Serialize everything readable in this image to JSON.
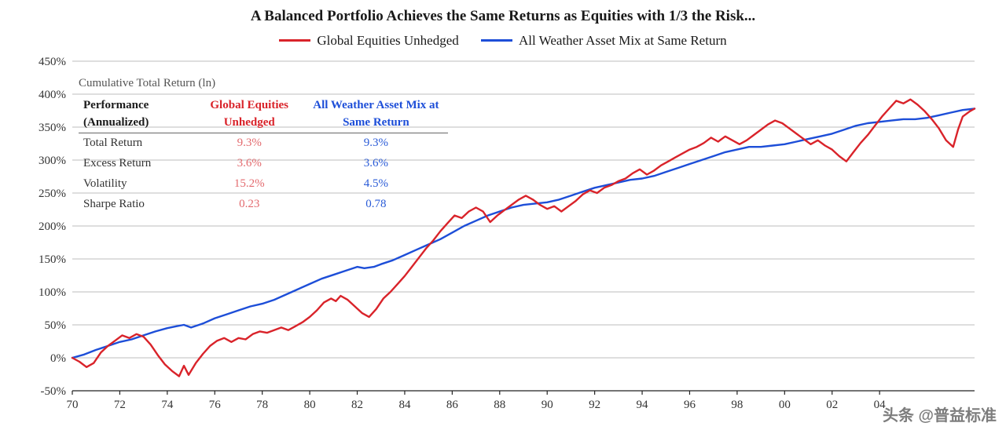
{
  "title": "A Balanced Portfolio Achieves the Same Returns as Equities with 1/3 the Risk...",
  "legend": {
    "equities": {
      "label": "Global Equities Unhedged",
      "color": "#d9232a"
    },
    "allweather": {
      "label": "All Weather Asset Mix at Same Return",
      "color": "#1d4ed8"
    }
  },
  "chart": {
    "type": "line",
    "background_color": "#ffffff",
    "grid_color": "#bcbcbc",
    "axis_color": "#222222",
    "x": {
      "min": 70,
      "max": 108,
      "ticks": [
        70,
        72,
        74,
        76,
        78,
        80,
        82,
        84,
        86,
        88,
        90,
        92,
        94,
        96,
        98,
        100,
        102,
        104
      ],
      "tick_labels": [
        "70",
        "72",
        "74",
        "76",
        "78",
        "80",
        "82",
        "84",
        "86",
        "88",
        "90",
        "92",
        "94",
        "96",
        "98",
        "00",
        "02",
        "04"
      ]
    },
    "y": {
      "min": -50,
      "max": 450,
      "ticks": [
        -50,
        0,
        50,
        100,
        150,
        200,
        250,
        300,
        350,
        400,
        450
      ],
      "tick_labels": [
        "-50%",
        "0%",
        "50%",
        "100%",
        "150%",
        "200%",
        "250%",
        "300%",
        "350%",
        "400%",
        "450%"
      ]
    },
    "series": {
      "allweather": {
        "color": "#1d4ed8",
        "width": 2.4,
        "points": [
          [
            70,
            0
          ],
          [
            70.5,
            5
          ],
          [
            71,
            12
          ],
          [
            71.5,
            18
          ],
          [
            72,
            24
          ],
          [
            72.5,
            28
          ],
          [
            73,
            34
          ],
          [
            73.5,
            40
          ],
          [
            74,
            45
          ],
          [
            74.4,
            48
          ],
          [
            74.7,
            50
          ],
          [
            75,
            46
          ],
          [
            75.5,
            52
          ],
          [
            76,
            60
          ],
          [
            76.5,
            66
          ],
          [
            77,
            72
          ],
          [
            77.5,
            78
          ],
          [
            78,
            82
          ],
          [
            78.5,
            88
          ],
          [
            79,
            96
          ],
          [
            79.5,
            104
          ],
          [
            80,
            112
          ],
          [
            80.5,
            120
          ],
          [
            81,
            126
          ],
          [
            81.5,
            132
          ],
          [
            82,
            138
          ],
          [
            82.3,
            136
          ],
          [
            82.7,
            138
          ],
          [
            83,
            142
          ],
          [
            83.5,
            148
          ],
          [
            84,
            156
          ],
          [
            84.5,
            164
          ],
          [
            85,
            172
          ],
          [
            85.5,
            180
          ],
          [
            86,
            190
          ],
          [
            86.5,
            200
          ],
          [
            87,
            208
          ],
          [
            87.5,
            216
          ],
          [
            88,
            222
          ],
          [
            88.5,
            228
          ],
          [
            89,
            232
          ],
          [
            89.5,
            234
          ],
          [
            90,
            236
          ],
          [
            90.5,
            240
          ],
          [
            91,
            246
          ],
          [
            91.5,
            252
          ],
          [
            92,
            258
          ],
          [
            92.5,
            262
          ],
          [
            93,
            266
          ],
          [
            93.5,
            270
          ],
          [
            94,
            272
          ],
          [
            94.5,
            276
          ],
          [
            95,
            282
          ],
          [
            95.5,
            288
          ],
          [
            96,
            294
          ],
          [
            96.5,
            300
          ],
          [
            97,
            306
          ],
          [
            97.5,
            312
          ],
          [
            98,
            316
          ],
          [
            98.5,
            320
          ],
          [
            99,
            320
          ],
          [
            99.5,
            322
          ],
          [
            100,
            324
          ],
          [
            100.5,
            328
          ],
          [
            101,
            332
          ],
          [
            101.5,
            336
          ],
          [
            102,
            340
          ],
          [
            102.5,
            346
          ],
          [
            103,
            352
          ],
          [
            103.5,
            356
          ],
          [
            104,
            358
          ],
          [
            104.5,
            360
          ],
          [
            105,
            362
          ],
          [
            105.5,
            362
          ],
          [
            106,
            364
          ],
          [
            106.5,
            368
          ],
          [
            107,
            372
          ],
          [
            107.5,
            376
          ],
          [
            108,
            378
          ]
        ]
      },
      "equities": {
        "color": "#d9232a",
        "width": 2.2,
        "points": [
          [
            70,
            0
          ],
          [
            70.3,
            -6
          ],
          [
            70.6,
            -14
          ],
          [
            70.9,
            -8
          ],
          [
            71.2,
            8
          ],
          [
            71.5,
            18
          ],
          [
            71.8,
            26
          ],
          [
            72.1,
            34
          ],
          [
            72.4,
            30
          ],
          [
            72.7,
            36
          ],
          [
            73,
            32
          ],
          [
            73.3,
            20
          ],
          [
            73.6,
            4
          ],
          [
            73.9,
            -10
          ],
          [
            74.2,
            -20
          ],
          [
            74.5,
            -28
          ],
          [
            74.7,
            -12
          ],
          [
            74.9,
            -26
          ],
          [
            75.2,
            -8
          ],
          [
            75.5,
            6
          ],
          [
            75.8,
            18
          ],
          [
            76.1,
            26
          ],
          [
            76.4,
            30
          ],
          [
            76.7,
            24
          ],
          [
            77,
            30
          ],
          [
            77.3,
            28
          ],
          [
            77.6,
            36
          ],
          [
            77.9,
            40
          ],
          [
            78.2,
            38
          ],
          [
            78.5,
            42
          ],
          [
            78.8,
            46
          ],
          [
            79.1,
            42
          ],
          [
            79.4,
            48
          ],
          [
            79.7,
            54
          ],
          [
            80,
            62
          ],
          [
            80.3,
            72
          ],
          [
            80.6,
            84
          ],
          [
            80.9,
            90
          ],
          [
            81.1,
            86
          ],
          [
            81.3,
            94
          ],
          [
            81.6,
            88
          ],
          [
            81.9,
            78
          ],
          [
            82.2,
            68
          ],
          [
            82.5,
            62
          ],
          [
            82.8,
            74
          ],
          [
            83.1,
            90
          ],
          [
            83.4,
            100
          ],
          [
            83.7,
            112
          ],
          [
            84,
            124
          ],
          [
            84.3,
            138
          ],
          [
            84.6,
            152
          ],
          [
            84.9,
            166
          ],
          [
            85.2,
            178
          ],
          [
            85.5,
            192
          ],
          [
            85.8,
            204
          ],
          [
            86.1,
            216
          ],
          [
            86.4,
            212
          ],
          [
            86.7,
            222
          ],
          [
            87,
            228
          ],
          [
            87.3,
            222
          ],
          [
            87.6,
            206
          ],
          [
            87.9,
            216
          ],
          [
            88.2,
            224
          ],
          [
            88.5,
            232
          ],
          [
            88.8,
            240
          ],
          [
            89.1,
            246
          ],
          [
            89.4,
            240
          ],
          [
            89.7,
            232
          ],
          [
            90,
            226
          ],
          [
            90.3,
            230
          ],
          [
            90.6,
            222
          ],
          [
            90.9,
            230
          ],
          [
            91.2,
            238
          ],
          [
            91.5,
            248
          ],
          [
            91.8,
            254
          ],
          [
            92.1,
            250
          ],
          [
            92.4,
            258
          ],
          [
            92.7,
            262
          ],
          [
            93,
            268
          ],
          [
            93.3,
            272
          ],
          [
            93.6,
            280
          ],
          [
            93.9,
            286
          ],
          [
            94.2,
            278
          ],
          [
            94.5,
            284
          ],
          [
            94.8,
            292
          ],
          [
            95.1,
            298
          ],
          [
            95.4,
            304
          ],
          [
            95.7,
            310
          ],
          [
            96,
            316
          ],
          [
            96.3,
            320
          ],
          [
            96.6,
            326
          ],
          [
            96.9,
            334
          ],
          [
            97.2,
            328
          ],
          [
            97.5,
            336
          ],
          [
            97.8,
            330
          ],
          [
            98.1,
            324
          ],
          [
            98.4,
            330
          ],
          [
            98.7,
            338
          ],
          [
            99,
            346
          ],
          [
            99.3,
            354
          ],
          [
            99.6,
            360
          ],
          [
            99.9,
            356
          ],
          [
            100.2,
            348
          ],
          [
            100.5,
            340
          ],
          [
            100.8,
            332
          ],
          [
            101.1,
            324
          ],
          [
            101.4,
            330
          ],
          [
            101.7,
            322
          ],
          [
            102,
            316
          ],
          [
            102.3,
            306
          ],
          [
            102.6,
            298
          ],
          [
            102.9,
            312
          ],
          [
            103.2,
            326
          ],
          [
            103.5,
            338
          ],
          [
            103.8,
            352
          ],
          [
            104.1,
            366
          ],
          [
            104.4,
            378
          ],
          [
            104.7,
            390
          ],
          [
            105,
            386
          ],
          [
            105.3,
            392
          ],
          [
            105.6,
            384
          ],
          [
            105.9,
            374
          ],
          [
            106.2,
            362
          ],
          [
            106.5,
            348
          ],
          [
            106.8,
            330
          ],
          [
            107.1,
            320
          ],
          [
            107.3,
            346
          ],
          [
            107.5,
            366
          ],
          [
            107.8,
            374
          ],
          [
            108,
            378
          ]
        ]
      }
    }
  },
  "inset": {
    "title": "Cumulative Total Return (ln)",
    "columns": {
      "metric": "Performance (Annualized)",
      "equities": "Global Equities Unhedged",
      "allweather": "All Weather Asset Mix at Same Return"
    },
    "rows": [
      {
        "metric": "Total Return",
        "equities": "9.3%",
        "allweather": "9.3%"
      },
      {
        "metric": "Excess Return",
        "equities": "3.6%",
        "allweather": "3.6%"
      },
      {
        "metric": "Volatility",
        "equities": "15.2%",
        "allweather": "4.5%"
      },
      {
        "metric": "Sharpe Ratio",
        "equities": "0.23",
        "allweather": "0.78"
      }
    ]
  },
  "watermark": "头条 @普益标准",
  "label_fontsize": 15
}
